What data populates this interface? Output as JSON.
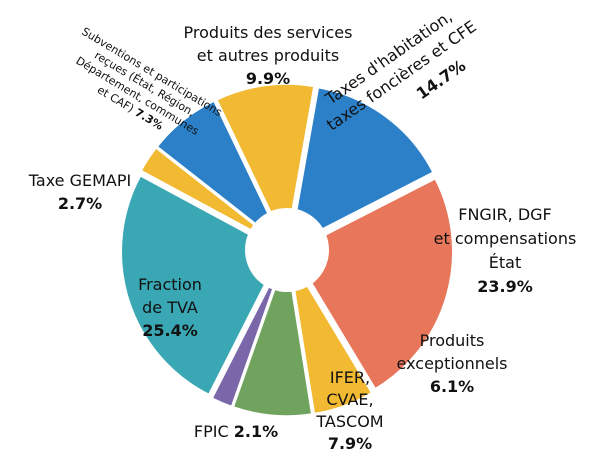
{
  "chart_data": {
    "type": "pie",
    "categories": [
      [
        "Taxes d'habitation,",
        "taxes foncières et CFE"
      ],
      [
        "FNGIR, DGF",
        "et compensations",
        "État"
      ],
      [
        "Produits",
        "exceptionnels"
      ],
      [
        "IFER,",
        "CVAE,",
        "TASCOM"
      ],
      [
        "FPIC"
      ],
      [
        "Fraction",
        "de TVA"
      ],
      [
        "Taxe GEMAPI"
      ],
      [
        "Subventions et participations",
        "reçues (État, Région,",
        "Département, communes",
        "et CAF)"
      ],
      [
        "Produits des services",
        "et autres produits"
      ]
    ],
    "values": [
      14.7,
      23.9,
      6.1,
      7.9,
      2.1,
      25.4,
      2.7,
      7.3,
      9.9
    ],
    "value_labels": [
      "14.7%",
      "23.9%",
      "6.1%",
      "7.9%",
      "2.1%",
      "25.4%",
      "2.7%",
      "7.3%",
      "9.9%"
    ],
    "colors": [
      "#2b80c8",
      "#e8765a",
      "#f2b933",
      "#6fa35e",
      "#7a67a9",
      "#3aa8b4",
      "#f2b933",
      "#2b80c8",
      "#f2b933"
    ]
  }
}
